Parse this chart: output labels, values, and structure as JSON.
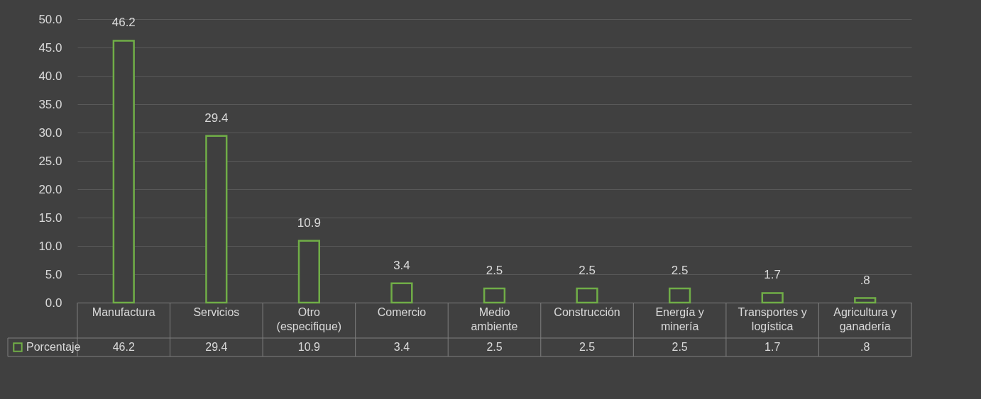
{
  "chart_data": {
    "type": "bar",
    "categories": [
      "Manufactura",
      "Servicios",
      "Otro (especifique)",
      "Comercio",
      "Medio ambiente",
      "Construcción",
      "Energía y minería",
      "Transportes y logística",
      "Agricultura y ganadería"
    ],
    "series": [
      {
        "name": "Porcentaje",
        "color": "#70ad47",
        "values": [
          46.2,
          29.4,
          10.9,
          3.4,
          2.5,
          2.5,
          2.5,
          1.7,
          0.8
        ],
        "value_labels": [
          "46.2",
          "29.4",
          "10.9",
          "3.4",
          "2.5",
          "2.5",
          "2.5",
          "1.7",
          ".8"
        ]
      }
    ],
    "ylim": [
      0,
      50
    ],
    "yticks": [
      {
        "value": 0,
        "label": "0.0"
      },
      {
        "value": 5,
        "label": "5.0"
      },
      {
        "value": 10,
        "label": "10.0"
      },
      {
        "value": 15,
        "label": "15.0"
      },
      {
        "value": 20,
        "label": "20.0"
      },
      {
        "value": 25,
        "label": "25.0"
      },
      {
        "value": 30,
        "label": "30.0"
      },
      {
        "value": 35,
        "label": "35.0"
      },
      {
        "value": 40,
        "label": "40.0"
      },
      {
        "value": 45,
        "label": "45.0"
      },
      {
        "value": 50,
        "label": "50.0"
      }
    ],
    "grid": true,
    "legend": "bottom left"
  }
}
